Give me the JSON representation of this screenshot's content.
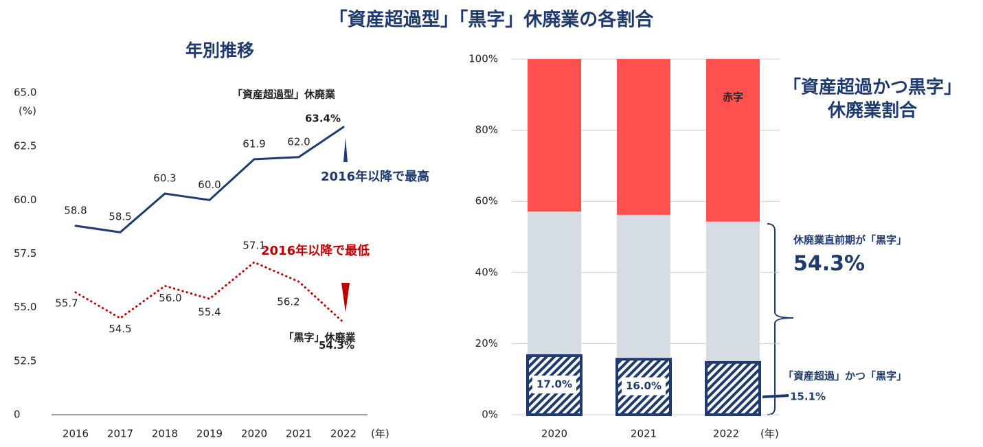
{
  "title": "「資産超過型」「黒字」休廃業の各割合",
  "chart_data": [
    {
      "type": "line",
      "subtitle": "年別推移",
      "y_unit": "(%)",
      "x_unit": "(年)",
      "categories": [
        "2016",
        "2017",
        "2018",
        "2019",
        "2020",
        "2021",
        "2022"
      ],
      "series": [
        {
          "name": "「資産超過型」休廃業",
          "color": "#1f3a6e",
          "style": "solid",
          "values": [
            58.8,
            58.5,
            60.3,
            60.0,
            61.9,
            62.0,
            63.4
          ],
          "value_labels": [
            "58.8",
            "58.5",
            "60.3",
            "60.0",
            "61.9",
            "62.0",
            "63.4%"
          ]
        },
        {
          "name": "「黒字」休廃業",
          "color": "#c00000",
          "style": "dotted",
          "values": [
            55.7,
            54.5,
            56.0,
            55.4,
            57.1,
            56.2,
            54.3
          ],
          "value_labels": [
            "55.7",
            "54.5",
            "56.0",
            "55.4",
            "57.1",
            "56.2",
            "54.3%"
          ]
        }
      ],
      "ylim": [
        50,
        65
      ],
      "axis_break": true,
      "yticks": [
        0,
        52.5,
        {
          "value": 55,
          "label": "55.0"
        },
        57.5,
        {
          "value": 60,
          "label": "60.0"
        },
        62.5,
        {
          "value": 65,
          "label": "65.0"
        }
      ],
      "annotations": [
        "2016年以降で最高",
        "2016年以降で最低"
      ]
    },
    {
      "type": "stacked_bar",
      "heading": [
        "「資産超過かつ黒字」",
        "休廃業割合"
      ],
      "x_unit": "(年)",
      "categories": [
        "2020",
        "2021",
        "2022"
      ],
      "series": [
        {
          "name": "「資産超過」かつ「黒字」",
          "color": "hatch",
          "values": [
            17.0,
            16.0,
            15.1
          ],
          "value_labels": [
            "17.0%",
            "16.0%",
            "15.1%"
          ]
        },
        {
          "name": null,
          "color": "#d6dce4",
          "values": [
            40.1,
            40.2,
            39.2
          ]
        },
        {
          "name": "赤字",
          "color": "#ff5050",
          "values": [
            42.9,
            43.8,
            45.7
          ]
        }
      ],
      "ylim": [
        0,
        100
      ],
      "yticks": [
        {
          "value": 0,
          "label": "0%"
        },
        {
          "value": 20,
          "label": "20%"
        },
        {
          "value": 40,
          "label": "40%"
        },
        {
          "value": 60,
          "label": "60%"
        },
        {
          "value": 80,
          "label": "80%"
        },
        {
          "value": 100,
          "label": "100%"
        }
      ],
      "annotations": [
        {
          "text": "休廃業直前期が「黒字」",
          "value_label": "54.3%"
        }
      ]
    }
  ]
}
